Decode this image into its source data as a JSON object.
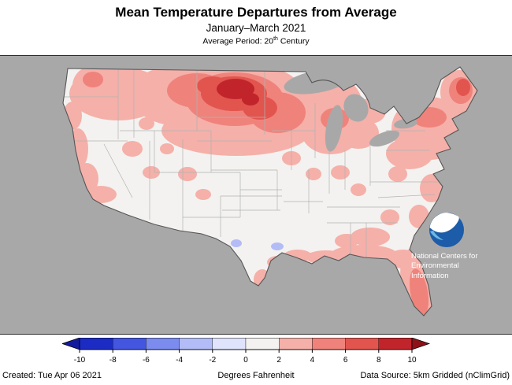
{
  "header": {
    "title": "Mean Temperature Departures from Average",
    "subtitle": "January–March 2021",
    "period_prefix": "Average Period: 20",
    "period_sup": "th",
    "period_suffix": " Century"
  },
  "map": {
    "water_color": "#a8a8a8",
    "land_color": "#f3f2f0",
    "state_border_color": "#b2b2b2",
    "outline_color": "#565656",
    "noaa": {
      "lines": [
        "National Centers for",
        "Environmental",
        "Information"
      ],
      "navy": "#1c5ca8",
      "light_blue": "#6cb9e3"
    }
  },
  "legend": {
    "ticks": [
      "-10",
      "-8",
      "-6",
      "-4",
      "-2",
      "0",
      "2",
      "4",
      "6",
      "8",
      "10"
    ],
    "segment_colors": [
      "#1c2bc4",
      "#4456e0",
      "#7b8cee",
      "#b3bcf6",
      "#dfe3fb",
      "#f4f2f0",
      "#f5b0a9",
      "#ef837b",
      "#e2554e",
      "#c1252b"
    ],
    "left_arrow_color": "#131b9c",
    "right_arrow_color": "#8e1118"
  },
  "footer": {
    "created": "Created: Tue Apr 06 2021",
    "units": "Degrees Fahrenheit",
    "source": "Data Source: 5km Gridded (nClimGrid)"
  }
}
